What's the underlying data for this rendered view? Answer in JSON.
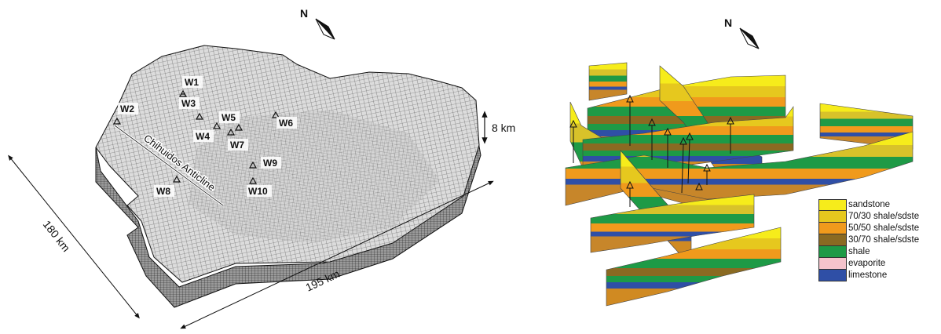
{
  "left_panel": {
    "north_label": "N",
    "wells": [
      {
        "id": "W1"
      },
      {
        "id": "W2"
      },
      {
        "id": "W3"
      },
      {
        "id": "W4"
      },
      {
        "id": "W5"
      },
      {
        "id": "W6"
      },
      {
        "id": "W7"
      },
      {
        "id": "W8"
      },
      {
        "id": "W9"
      },
      {
        "id": "W10"
      }
    ],
    "anticline_label": "Chihuidos Anticline",
    "scale_vertical": "8 km",
    "scale_width": "195 km",
    "scale_depth": "180 km"
  },
  "right_panel": {
    "north_label": "N",
    "legend": [
      {
        "label": "sandstone",
        "color": "#f6ec1b"
      },
      {
        "label": "70/30 shale/sdste",
        "color": "#e6c81e"
      },
      {
        "label": "50/50 shale/sdste",
        "color": "#f09a1c"
      },
      {
        "label": "30/70 shale/sdste",
        "color": "#8a6a22"
      },
      {
        "label": "shale",
        "color": "#1e9a46"
      },
      {
        "label": "evaporite",
        "color": "#f5c3cc"
      },
      {
        "label": "limestone",
        "color": "#2f4fa6"
      }
    ]
  }
}
